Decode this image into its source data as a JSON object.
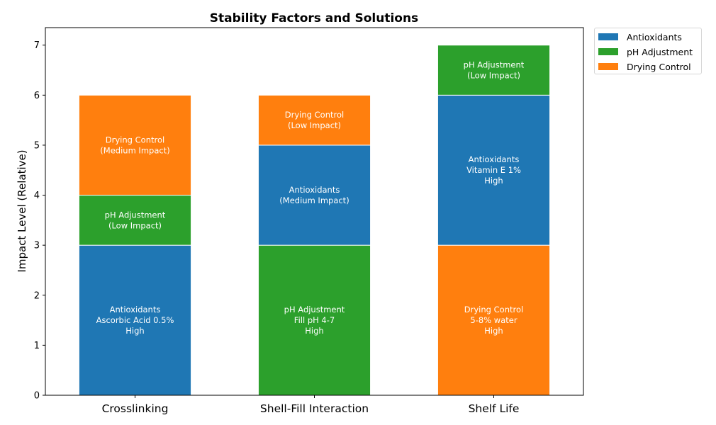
{
  "chart_data": {
    "type": "bar",
    "stacked": true,
    "title": "Stability Factors and Solutions",
    "xlabel": "",
    "ylabel": "Impact Level (Relative)",
    "ylim": [
      0,
      7.35
    ],
    "yticks": [
      0,
      1,
      2,
      3,
      4,
      5,
      6,
      7
    ],
    "grid": false,
    "legend_position": "outside-top-right",
    "categories": [
      "Crosslinking",
      "Shell-Fill Interaction",
      "Shelf Life"
    ],
    "legend": [
      {
        "name": "Antioxidants",
        "color": "#1f77b4"
      },
      {
        "name": "pH Adjustment",
        "color": "#2ca02c"
      },
      {
        "name": "Drying Control",
        "color": "#ff7f0e"
      }
    ],
    "stacks": [
      {
        "category": "Crosslinking",
        "segments": [
          {
            "series": "Antioxidants",
            "value": 3,
            "color": "#1f77b4",
            "label": [
              "Antioxidants",
              "Ascorbic Acid 0.5%",
              "High"
            ]
          },
          {
            "series": "pH Adjustment",
            "value": 1,
            "color": "#2ca02c",
            "label": [
              "pH Adjustment",
              "(Low Impact)"
            ]
          },
          {
            "series": "Drying Control",
            "value": 2,
            "color": "#ff7f0e",
            "label": [
              "Drying Control",
              "(Medium Impact)"
            ]
          }
        ]
      },
      {
        "category": "Shell-Fill Interaction",
        "segments": [
          {
            "series": "pH Adjustment",
            "value": 3,
            "color": "#2ca02c",
            "label": [
              "pH Adjustment",
              "Fill pH 4-7",
              "High"
            ]
          },
          {
            "series": "Antioxidants",
            "value": 2,
            "color": "#1f77b4",
            "label": [
              "Antioxidants",
              "(Medium Impact)"
            ]
          },
          {
            "series": "Drying Control",
            "value": 1,
            "color": "#ff7f0e",
            "label": [
              "Drying Control",
              "(Low Impact)"
            ]
          }
        ]
      },
      {
        "category": "Shelf Life",
        "segments": [
          {
            "series": "Drying Control",
            "value": 3,
            "color": "#ff7f0e",
            "label": [
              "Drying Control",
              "5-8% water",
              "High"
            ]
          },
          {
            "series": "Antioxidants",
            "value": 3,
            "color": "#1f77b4",
            "label": [
              "Antioxidants",
              "Vitamin E 1%",
              "High"
            ]
          },
          {
            "series": "pH Adjustment",
            "value": 1,
            "color": "#2ca02c",
            "label": [
              "pH Adjustment",
              "(Low Impact)"
            ]
          }
        ]
      }
    ]
  }
}
